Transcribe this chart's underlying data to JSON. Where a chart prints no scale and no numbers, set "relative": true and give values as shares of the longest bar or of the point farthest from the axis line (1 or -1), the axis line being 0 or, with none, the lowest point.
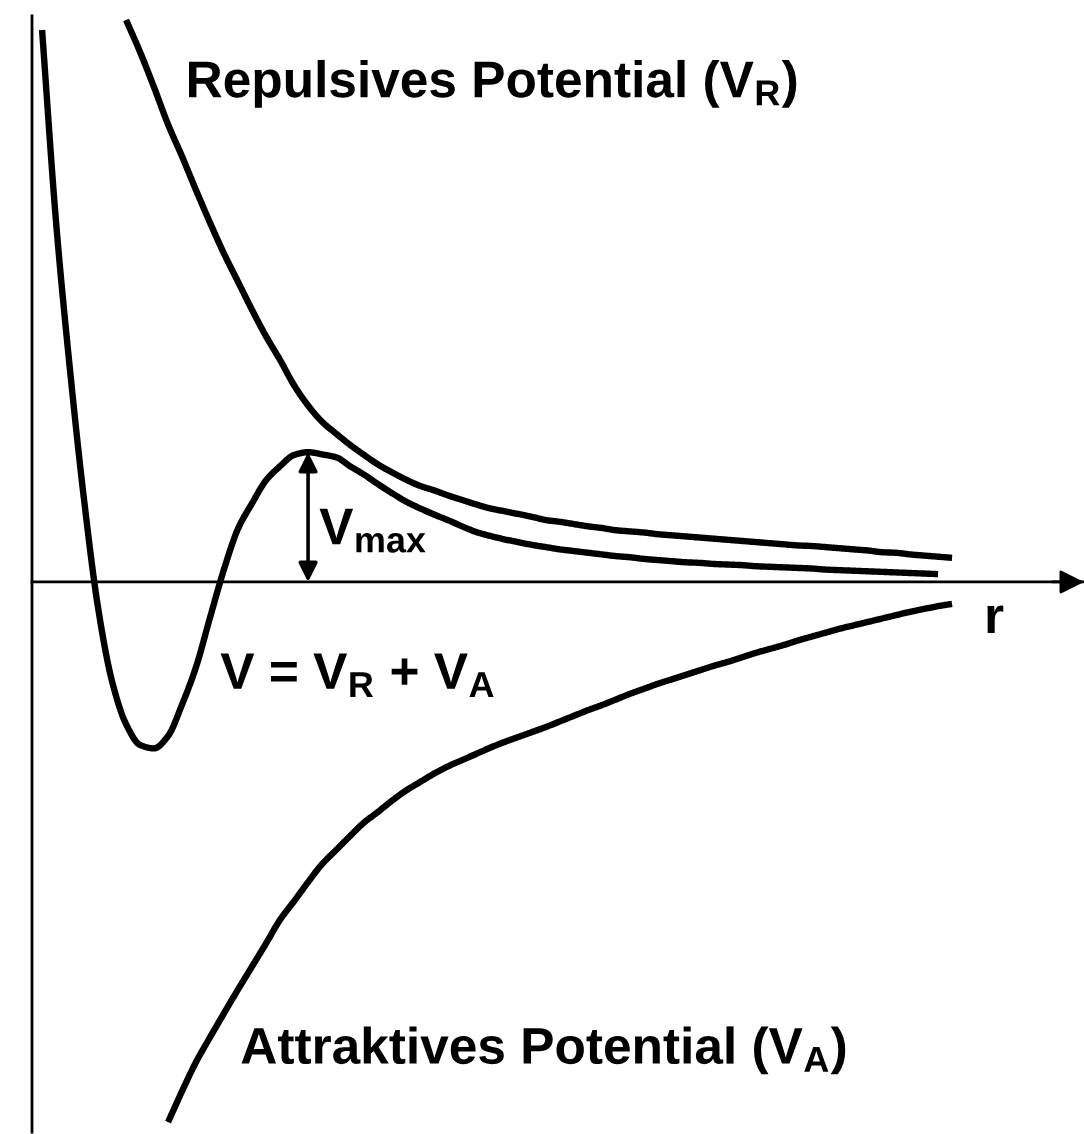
{
  "chart_data": {
    "type": "line",
    "relative": true,
    "categories": [
      null,
      null,
      null,
      null,
      null,
      null,
      null,
      null,
      null,
      null,
      null,
      null,
      null,
      null,
      null,
      null,
      null,
      null,
      null,
      null,
      null,
      null,
      null,
      null,
      null,
      null,
      null,
      null,
      null,
      null,
      null,
      null,
      null,
      null,
      null,
      null,
      null,
      null,
      null,
      null,
      null,
      null,
      null,
      null,
      null,
      null,
      null,
      null,
      null,
      null,
      null,
      null,
      null,
      null,
      null,
      null,
      null,
      null,
      null,
      null,
      null,
      null,
      null,
      null,
      null,
      null
    ],
    "series": [
      {
        "name": "Repulsives Potential (V$_{R}$)",
        "color": "#000000",
        "values": [
          null,
          null,
          null,
          null,
          null,
          null,
          1.0,
          0.943,
          0.88,
          0.814,
          0.757,
          0.697,
          0.639,
          0.584,
          0.534,
          0.484,
          0.437,
          0.395,
          0.35,
          0.314,
          0.285,
          0.264,
          0.244,
          0.226,
          0.209,
          0.195,
          0.182,
          0.171,
          0.163,
          0.154,
          0.146,
          0.138,
          0.131,
          0.126,
          0.121,
          0.116,
          0.11,
          0.107,
          0.103,
          0.099,
          0.096,
          0.092,
          0.09,
          0.088,
          0.085,
          0.083,
          0.081,
          0.079,
          0.077,
          0.075,
          0.073,
          0.071,
          0.069,
          0.067,
          0.065,
          0.064,
          0.062,
          0.06,
          0.058,
          0.056,
          0.053,
          0.052,
          0.049,
          0.047,
          0.045,
          0.043
        ]
      },
      {
        "name": "V = V$_{R}$ + V$_{A}$",
        "color": "#000000",
        "values": [
          0.982,
          0.64,
          0.376,
          0.146,
          -0.046,
          -0.177,
          -0.253,
          -0.29,
          -0.296,
          -0.274,
          -0.218,
          -0.151,
          -0.063,
          0.023,
          0.095,
          0.14,
          0.181,
          0.206,
          0.226,
          0.231,
          0.227,
          0.222,
          0.206,
          0.191,
          0.174,
          0.158,
          0.143,
          0.131,
          0.12,
          0.11,
          0.099,
          0.089,
          0.082,
          0.076,
          0.071,
          0.066,
          0.062,
          0.058,
          0.055,
          0.052,
          0.049,
          0.046,
          0.044,
          0.041,
          0.039,
          0.037,
          0.035,
          0.034,
          0.032,
          0.031,
          0.03,
          0.028,
          0.027,
          0.026,
          0.025,
          0.024,
          0.022,
          0.021,
          0.02,
          0.019,
          0.018,
          0.017,
          0.016,
          0.015,
          0.014,
          null
        ]
      },
      {
        "name": "Attraktives Potential (V$_{A}$)",
        "color": "#000000",
        "values": [
          null,
          null,
          null,
          null,
          null,
          null,
          null,
          null,
          null,
          -0.961,
          -0.906,
          -0.854,
          -0.81,
          -0.767,
          -0.725,
          -0.684,
          -0.643,
          -0.601,
          -0.568,
          -0.534,
          -0.502,
          -0.477,
          -0.452,
          -0.428,
          -0.409,
          -0.389,
          -0.371,
          -0.356,
          -0.341,
          -0.328,
          -0.317,
          -0.306,
          -0.295,
          -0.285,
          -0.276,
          -0.267,
          -0.258,
          -0.248,
          -0.238,
          -0.228,
          -0.219,
          -0.209,
          -0.199,
          -0.19,
          -0.181,
          -0.173,
          -0.165,
          -0.157,
          -0.149,
          -0.142,
          -0.134,
          -0.126,
          -0.119,
          -0.112,
          -0.104,
          -0.097,
          -0.09,
          -0.083,
          -0.077,
          -0.071,
          -0.065,
          -0.059,
          -0.053,
          -0.048,
          -0.043,
          -0.039
        ]
      }
    ],
    "xlabel": "r",
    "annotations": [
      "V$_{max}$"
    ]
  }
}
